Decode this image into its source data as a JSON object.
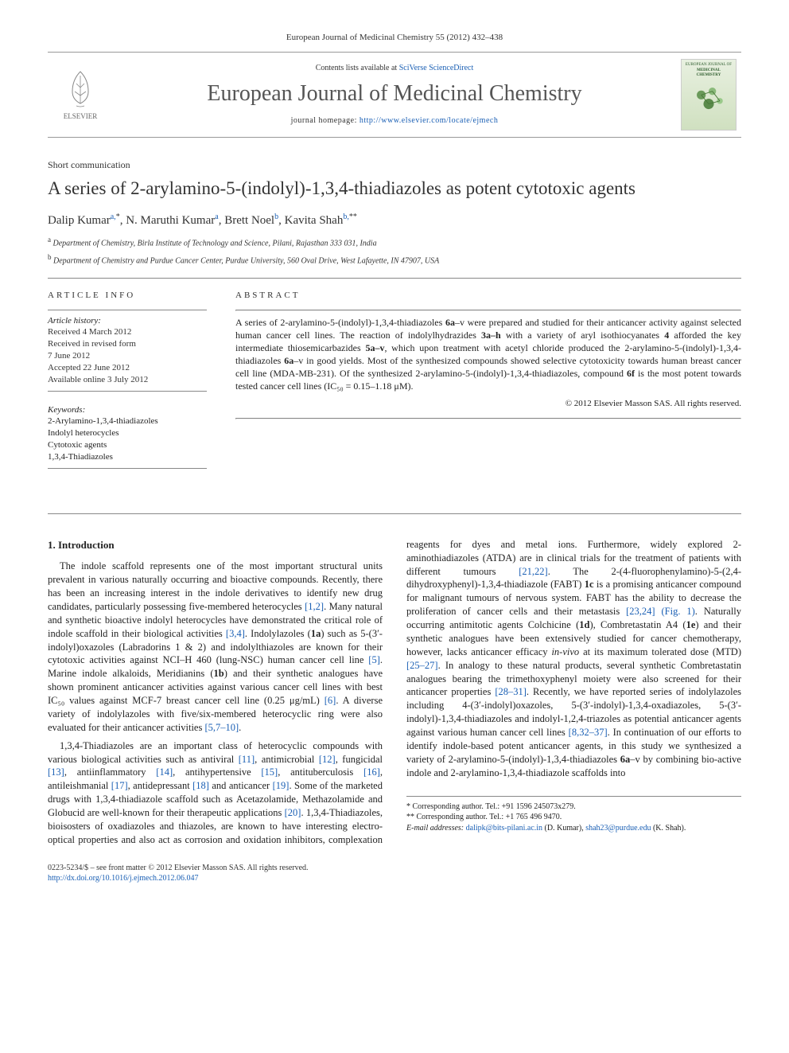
{
  "header": {
    "citation": "European Journal of Medicinal Chemistry 55 (2012) 432–438",
    "contents_prefix": "Contents lists available at ",
    "contents_link": "SciVerse ScienceDirect",
    "journal_name": "European Journal of Medicinal Chemistry",
    "homepage_prefix": "journal homepage: ",
    "homepage_url": "http://www.elsevier.com/locate/ejmech",
    "publisher_label": "ELSEVIER",
    "cover_label_1": "EUROPEAN JOURNAL OF",
    "cover_label_2": "MEDICINAL CHEMISTRY"
  },
  "article": {
    "type": "Short communication",
    "title": "A series of 2-arylamino-5-(indolyl)-1,3,4-thiadiazoles as potent cytotoxic agents",
    "authors_html": "Dalip Kumar",
    "authors": [
      {
        "name": "Dalip Kumar",
        "affil": "a",
        "corr": "*"
      },
      {
        "name": "N. Maruthi Kumar",
        "affil": "a",
        "corr": ""
      },
      {
        "name": "Brett Noel",
        "affil": "b",
        "corr": ""
      },
      {
        "name": "Kavita Shah",
        "affil": "b",
        "corr": "**"
      }
    ],
    "affiliations": [
      {
        "sup": "a",
        "text": "Department of Chemistry, Birla Institute of Technology and Science, Pilani, Rajasthan 333 031, India"
      },
      {
        "sup": "b",
        "text": "Department of Chemistry and Purdue Cancer Center, Purdue University, 560 Oval Drive, West Lafayette, IN 47907, USA"
      }
    ]
  },
  "info": {
    "heading": "ARTICLE INFO",
    "history_label": "Article history:",
    "received": "Received 4 March 2012",
    "revised_1": "Received in revised form",
    "revised_2": "7 June 2012",
    "accepted": "Accepted 22 June 2012",
    "online": "Available online 3 July 2012",
    "keywords_label": "Keywords:",
    "keywords": [
      "2-Arylamino-1,3,4-thiadiazoles",
      "Indolyl heterocycles",
      "Cytotoxic agents",
      "1,3,4-Thiadiazoles"
    ]
  },
  "abstract": {
    "heading": "ABSTRACT",
    "text": "A series of 2-arylamino-5-(indolyl)-1,3,4-thiadiazoles 6a–v were prepared and studied for their anticancer activity against selected human cancer cell lines. The reaction of indolylhydrazides 3a–h with a variety of aryl isothiocyanates 4 afforded the key intermediate thiosemicarbazides 5a–v, which upon treatment with acetyl chloride produced the 2-arylamino-5-(indolyl)-1,3,4-thiadiazoles 6a–v in good yields. Most of the synthesized compounds showed selective cytotoxicity towards human breast cancer cell line (MDA-MB-231). Of the synthesized 2-arylamino-5-(indolyl)-1,3,4-thiadiazoles, compound 6f is the most potent towards tested cancer cell lines (IC₅₀ = 0.15–1.18 μM).",
    "copyright": "© 2012 Elsevier Masson SAS. All rights reserved."
  },
  "body": {
    "section_1_heading": "1. Introduction",
    "para_1": "The indole scaffold represents one of the most important structural units prevalent in various naturally occurring and bioactive compounds. Recently, there has been an increasing interest in the indole derivatives to identify new drug candidates, particularly possessing five-membered heterocycles [1,2]. Many natural and synthetic bioactive indolyl heterocycles have demonstrated the critical role of indole scaffold in their biological activities [3,4]. Indolylazoles (1a) such as 5-(3′-indolyl)oxazoles (Labradorins 1 & 2) and indolylthiazoles are known for their cytotoxic activities against NCI–H 460 (lung-NSC) human cancer cell line [5]. Marine indole alkaloids, Meridianins (1b) and their synthetic analogues have shown prominent anticancer activities against various cancer cell lines with best IC₅₀ values against MCF-7 breast cancer cell line (0.25 μg/mL) [6]. A diverse variety of indolylazoles with five/six-membered heterocyclic ring were also evaluated for their anticancer activities [5,7–10].",
    "para_2": "1,3,4-Thiadiazoles are an important class of heterocyclic compounds with various biological activities such as antiviral [11], antimicrobial [12], fungicidal [13], antiinflammatory [14], antihypertensive [15], antituberculosis [16], antileishmanial [17], antidepressant [18] and anticancer [19]. Some of the marketed drugs with 1,3,4-thiadiazole scaffold such as Acetazolamide, Methazolamide and Globucid are well-known for their therapeutic applications [20]. 1,3,4-Thiadiazoles, bioisosters of oxadiazoles and thiazoles, are known to have interesting electro-optical properties and also act as corrosion and oxidation inhibitors, complexation reagents for dyes and metal ions. Furthermore, widely explored 2-aminothiadiazoles (ATDA) are in clinical trials for the treatment of patients with different tumours [21,22]. The 2-(4-fluorophenylamino)-5-(2,4-dihydroxyphenyl)-1,3,4-thiadiazole (FABT) 1c is a promising anticancer compound for malignant tumours of nervous system. FABT has the ability to decrease the proliferation of cancer cells and their metastasis [23,24] (Fig. 1). Naturally occurring antimitotic agents Colchicine (1d), Combretastatin A4 (1e) and their synthetic analogues have been extensively studied for cancer chemotherapy, however, lacks anticancer efficacy in-vivo at its maximum tolerated dose (MTD) [25–27]. In analogy to these natural products, several synthetic Combretastatin analogues bearing the trimethoxyphenyl moiety were also screened for their anticancer properties [28–31]. Recently, we have reported series of indolylazoles including 4-(3′-indolyl)oxazoles, 5-(3′-indolyl)-1,3,4-oxadiazoles, 5-(3′-indolyl)-1,3,4-thiadiazoles and indolyl-1,2,4-triazoles as potential anticancer agents against various human cancer cell lines [8,32–37]. In continuation of our efforts to identify indole-based potent anticancer agents, in this study we synthesized a variety of 2-arylamino-5-(indolyl)-1,3,4-thiadiazoles 6a–v by combining bio-active indole and 2-arylamino-1,3,4-thiadiazole scaffolds into"
  },
  "footnotes": {
    "corr1_label": "* Corresponding author. Tel.: +91 1596 245073x279.",
    "corr2_label": "** Corresponding author. Tel.: +1 765 496 9470.",
    "email_label": "E-mail addresses: ",
    "email1": "dalipk@bits-pilani.ac.in",
    "email1_name": " (D. Kumar), ",
    "email2": "shah23@purdue.edu",
    "email2_name": "(K. Shah)."
  },
  "bottom": {
    "issn_line": "0223-5234/$ – see front matter © 2012 Elsevier Masson SAS. All rights reserved.",
    "doi": "http://dx.doi.org/10.1016/j.ejmech.2012.06.047"
  },
  "colors": {
    "link": "#1a5fb4",
    "text": "#222222",
    "rule": "#888888"
  }
}
